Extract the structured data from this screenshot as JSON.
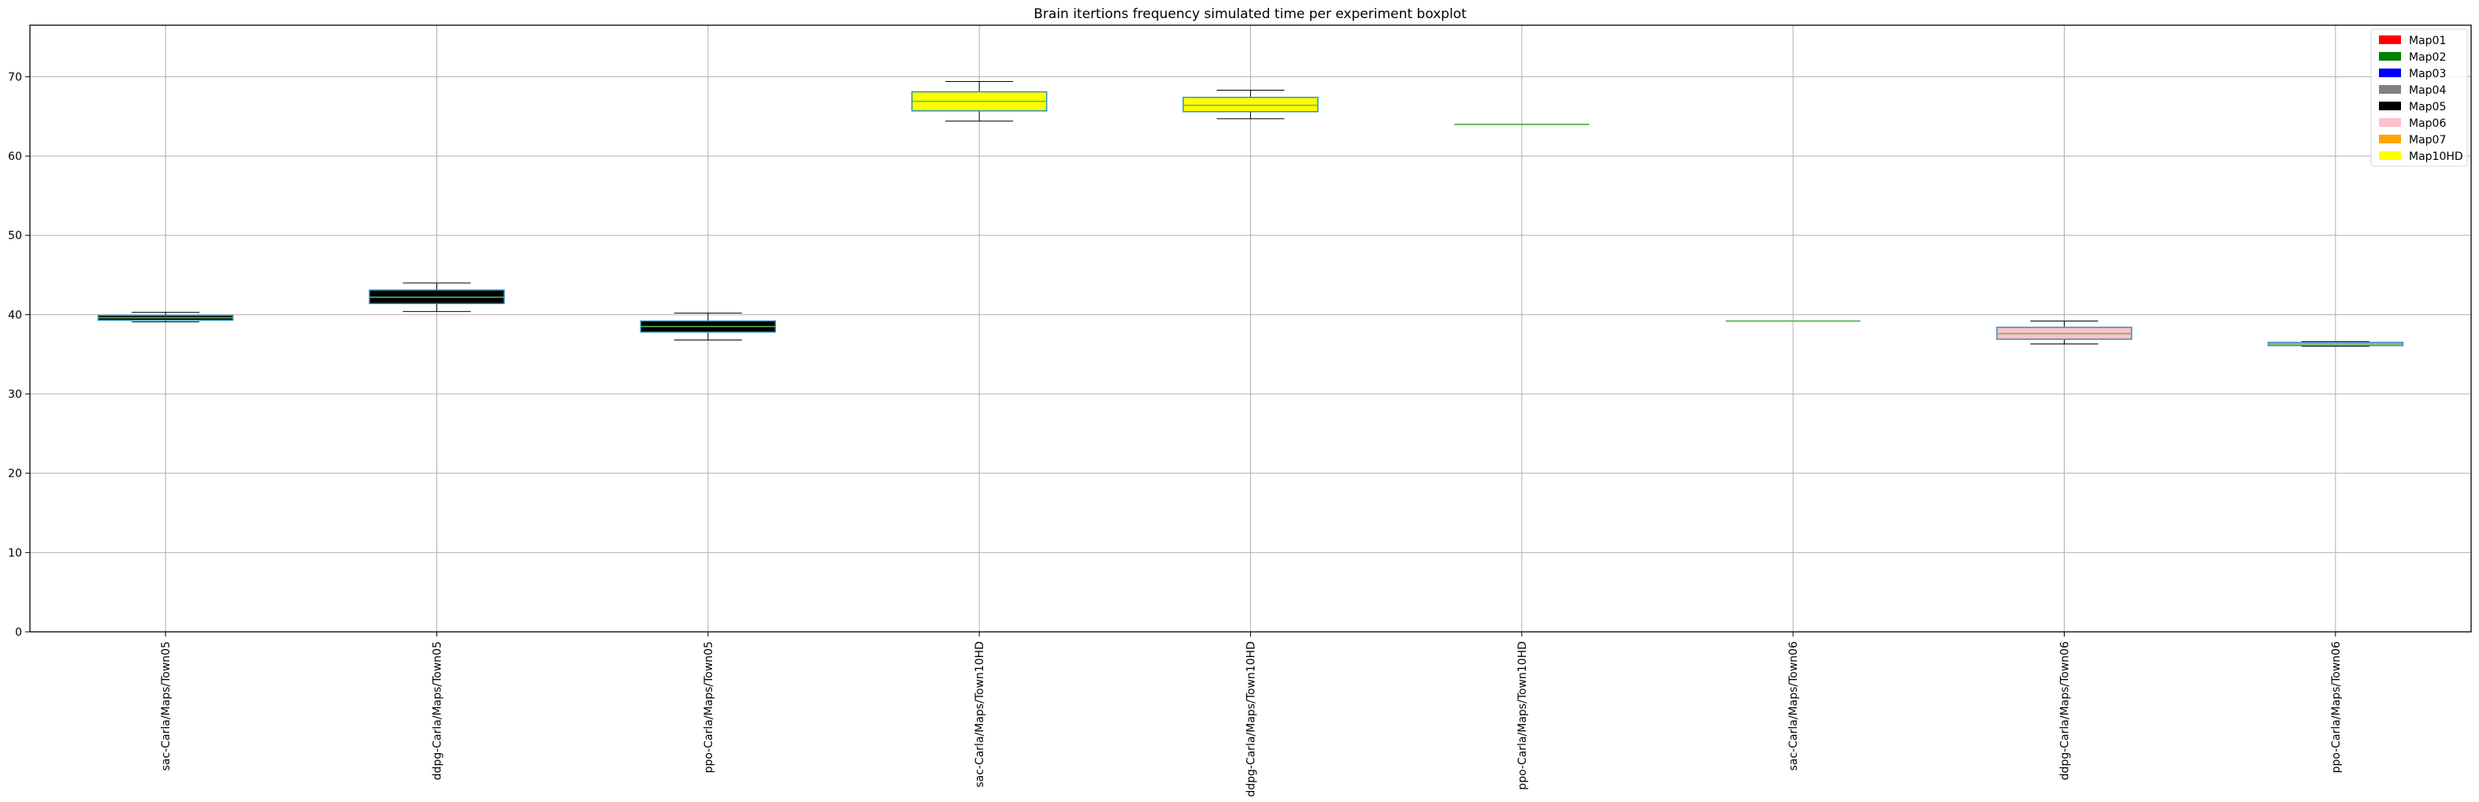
{
  "chart_data": {
    "type": "boxplot",
    "title": "Brain itertions frequency simulated time per experiment boxplot",
    "xlabel": "",
    "ylabel": "",
    "ylim": [
      0,
      76.5
    ],
    "yticks": [
      0,
      10,
      20,
      30,
      40,
      50,
      60,
      70
    ],
    "grid": true,
    "legend_position": "top-right",
    "legend": [
      {
        "label": "Map01",
        "color": "#ff0000"
      },
      {
        "label": "Map02",
        "color": "#008000"
      },
      {
        "label": "Map03",
        "color": "#0000ff"
      },
      {
        "label": "Map04",
        "color": "#808080"
      },
      {
        "label": "Map05",
        "color": "#000000"
      },
      {
        "label": "Map06",
        "color": "#ffc0cb"
      },
      {
        "label": "Map07",
        "color": "#ffa500"
      },
      {
        "label": "Map10HD",
        "color": "#ffff00"
      }
    ],
    "boxes": [
      {
        "label": "sac-Carla/Maps/Town05",
        "color": "#000000",
        "whisker_low": 39.1,
        "q1": 39.3,
        "median": 39.6,
        "q3": 39.9,
        "whisker_high": 40.3
      },
      {
        "label": "ddpg-Carla/Maps/Town05",
        "color": "#000000",
        "whisker_low": 40.4,
        "q1": 41.4,
        "median": 42.2,
        "q3": 43.1,
        "whisker_high": 44.0
      },
      {
        "label": "ppo-Carla/Maps/Town05",
        "color": "#000000",
        "whisker_low": 36.8,
        "q1": 37.8,
        "median": 38.5,
        "q3": 39.2,
        "whisker_high": 40.2
      },
      {
        "label": "sac-Carla/Maps/Town10HD",
        "color": "#ffff00",
        "whisker_low": 64.4,
        "q1": 65.7,
        "median": 66.9,
        "q3": 68.1,
        "whisker_high": 69.4
      },
      {
        "label": "ddpg-Carla/Maps/Town10HD",
        "color": "#ffff00",
        "whisker_low": 64.7,
        "q1": 65.6,
        "median": 66.4,
        "q3": 67.4,
        "whisker_high": 68.3
      },
      {
        "label": "ppo-Carla/Maps/Town10HD",
        "color": "#ffff00",
        "whisker_low": 64.0,
        "q1": 64.0,
        "median": 64.0,
        "q3": 64.0,
        "whisker_high": 64.0
      },
      {
        "label": "sac-Carla/Maps/Town06",
        "color": "#ffc0cb",
        "whisker_low": 39.2,
        "q1": 39.2,
        "median": 39.2,
        "q3": 39.2,
        "whisker_high": 39.2
      },
      {
        "label": "ddpg-Carla/Maps/Town06",
        "color": "#ffc0cb",
        "whisker_low": 36.3,
        "q1": 36.9,
        "median": 37.6,
        "q3": 38.4,
        "whisker_high": 39.2
      },
      {
        "label": "ppo-Carla/Maps/Town06",
        "color": "#ffc0cb",
        "whisker_low": 36.0,
        "q1": 36.1,
        "median": 36.3,
        "q3": 36.5,
        "whisker_high": 36.6
      }
    ]
  }
}
